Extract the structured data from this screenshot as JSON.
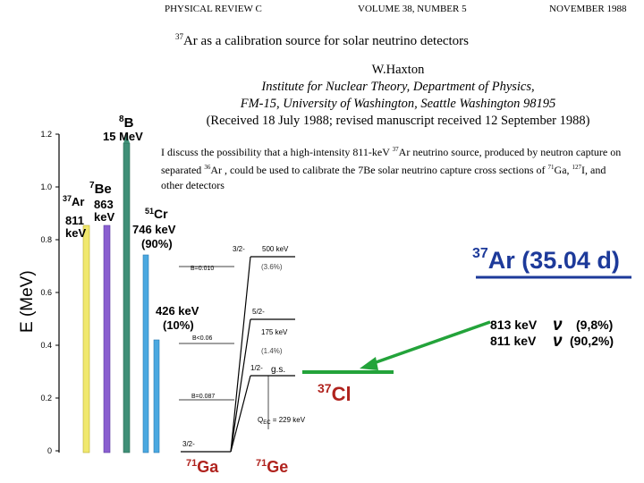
{
  "header": {
    "journal": "PHYSICAL REVIEW C",
    "volume": "VOLUME 38, NUMBER 5",
    "date": "NOVEMBER 1988"
  },
  "paper": {
    "title_sup": "37",
    "title_rest": "Ar as a calibration source for solar neutrino detectors",
    "author": "W.Haxton",
    "affiliation_1": "Institute for Nuclear Theory, Department of Physics,",
    "affiliation_2": "FM-15, University of Washington, Seattle Washington 98195",
    "received": "(Received 18 July 1988; revised manuscript received 12 September 1988)",
    "abstract_1": "I discuss the possibility that a high-intensity 811-keV ",
    "abstract_sup1": "37",
    "abstract_2": "Ar neutrino source, produced by neutron capture on separated ",
    "abstract_sup2": "36",
    "abstract_3": "Ar , could be used to calibrate the 7Be solar neutrino capture cross sections of ",
    "abstract_sup3": "71",
    "abstract_4": "Ga, ",
    "abstract_sup4": "127",
    "abstract_5": "I, and other detectors"
  },
  "figure": {
    "y_axis_label": "E (MeV)",
    "y_ticks": [
      "1.2",
      "1.0",
      "0.8",
      "0.6",
      "0.4",
      "0.2",
      "0"
    ],
    "bars": [
      {
        "mass": "37",
        "symbol": "Ar",
        "energy_1": "811",
        "energy_2": "keV",
        "value": 0.811,
        "color": "#f0e86e"
      },
      {
        "mass": "7",
        "symbol": "Be",
        "energy_1": "863",
        "energy_2": "keV",
        "value": 0.863,
        "color": "#8a5fd0"
      },
      {
        "mass": "8",
        "symbol": "B",
        "energy_1": "15 MeV",
        "energy_2": "",
        "value": 1.2,
        "color": "#3f8f77"
      },
      {
        "mass": "51",
        "symbol": "Cr",
        "energy_1": "746 keV",
        "energy_2": "(90%)",
        "value": 0.746,
        "color": "#4aa8e0"
      },
      {
        "mass": "",
        "symbol": "",
        "energy_1": "426 keV",
        "energy_2": "(10%)",
        "value": 0.426,
        "color": "#4aa8e0"
      }
    ],
    "ga_ge": {
      "ga_mass": "71",
      "ga_symbol": "Ga",
      "ge_mass": "71",
      "ge_symbol": "Ge",
      "levels": [
        "3/2-",
        "5/2-",
        "1/2-",
        "3/2-"
      ],
      "level_energies": [
        "500 keV",
        "175 keV",
        "g.s."
      ],
      "percent_1": "(3.6%)",
      "percent_2": "(1.4%)",
      "b_values": [
        "B=0.010",
        "B<0.06",
        "B=0.087"
      ],
      "q_label": "Q",
      "q_sub": "EC",
      "q_value": " = 229 keV"
    },
    "ar_decay": {
      "mass": "37",
      "title": "Ar (35.04  d)",
      "line_1_energy": "813 keV",
      "line_1_nu": "ν",
      "line_1_pct": "(9,8%)",
      "line_2_energy": "811 keV",
      "line_2_nu": "ν",
      "line_2_pct": "(90,2%)",
      "daughter_mass": "37",
      "daughter_symbol": "Cl"
    }
  }
}
